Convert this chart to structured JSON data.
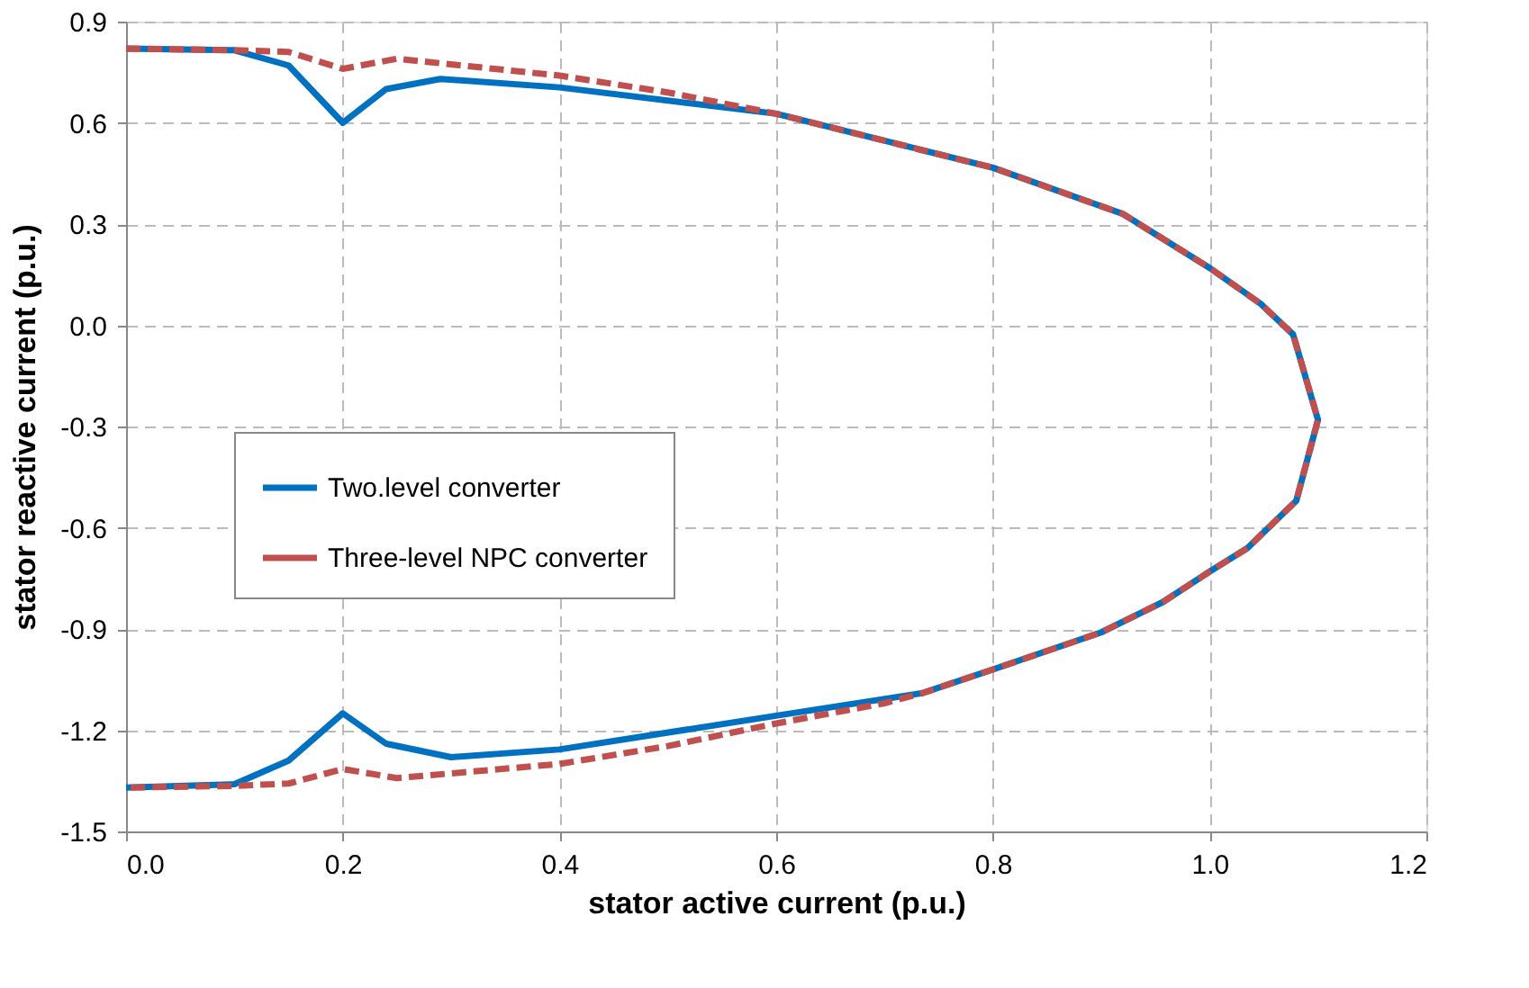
{
  "chart_data": {
    "type": "line",
    "xlabel": "stator active current (p.u.)",
    "ylabel": "stator  reactive current (p.u.)",
    "xlim": [
      0,
      1.2
    ],
    "ylim": [
      -1.5,
      0.9
    ],
    "xticks": [
      {
        "value": 0,
        "label": "0.0"
      },
      0.2,
      0.4,
      0.6,
      0.8,
      {
        "value": 1,
        "label": "1.0"
      },
      1.2
    ],
    "yticks": [
      0.9,
      0.6,
      0.3,
      {
        "value": 0,
        "label": "0.0"
      },
      -0.3,
      -0.6,
      -0.9,
      -1.2,
      -1.5
    ],
    "grid": true,
    "legend": "left",
    "marker": "none",
    "series": [
      {
        "name": "Two.level converter",
        "color": "#0070c0",
        "line_style": "solid",
        "x": [
          0,
          0.1,
          0.15,
          0.2,
          0.24,
          0.29,
          0.4,
          0.6,
          0.8,
          0.92,
          1.0,
          1.047,
          1.077,
          1.1,
          1.08,
          1.035,
          1.0,
          0.957,
          0.9,
          0.8,
          0.735,
          0.6,
          0.4,
          0.3,
          0.24,
          0.2,
          0.15,
          0.1,
          0
        ],
        "values": [
          0.82,
          0.815,
          0.77,
          0.6,
          0.7,
          0.73,
          0.705,
          0.627,
          0.467,
          0.33,
          0.17,
          0.064,
          -0.027,
          -0.28,
          -0.52,
          -0.66,
          -0.73,
          -0.82,
          -0.91,
          -1.02,
          -1.09,
          -1.157,
          -1.257,
          -1.28,
          -1.24,
          -1.15,
          -1.29,
          -1.36,
          -1.37
        ]
      },
      {
        "name": "Three-level NPC converter",
        "color": "#c0504d",
        "line_style": "dashed",
        "x": [
          0,
          0.1,
          0.15,
          0.2,
          0.25,
          0.4,
          0.5,
          0.6,
          0.8,
          0.92,
          1.0,
          1.047,
          1.077,
          1.1,
          1.08,
          1.035,
          1.0,
          0.957,
          0.9,
          0.8,
          0.735,
          0.7,
          0.6,
          0.5,
          0.4,
          0.25,
          0.2,
          0.15,
          0.1,
          0
        ],
        "values": [
          0.82,
          0.815,
          0.81,
          0.76,
          0.79,
          0.74,
          0.69,
          0.627,
          0.467,
          0.33,
          0.17,
          0.064,
          -0.027,
          -0.28,
          -0.52,
          -0.66,
          -0.73,
          -0.82,
          -0.91,
          -1.02,
          -1.09,
          -1.12,
          -1.18,
          -1.247,
          -1.3,
          -1.342,
          -1.315,
          -1.358,
          -1.365,
          -1.37
        ]
      }
    ]
  }
}
